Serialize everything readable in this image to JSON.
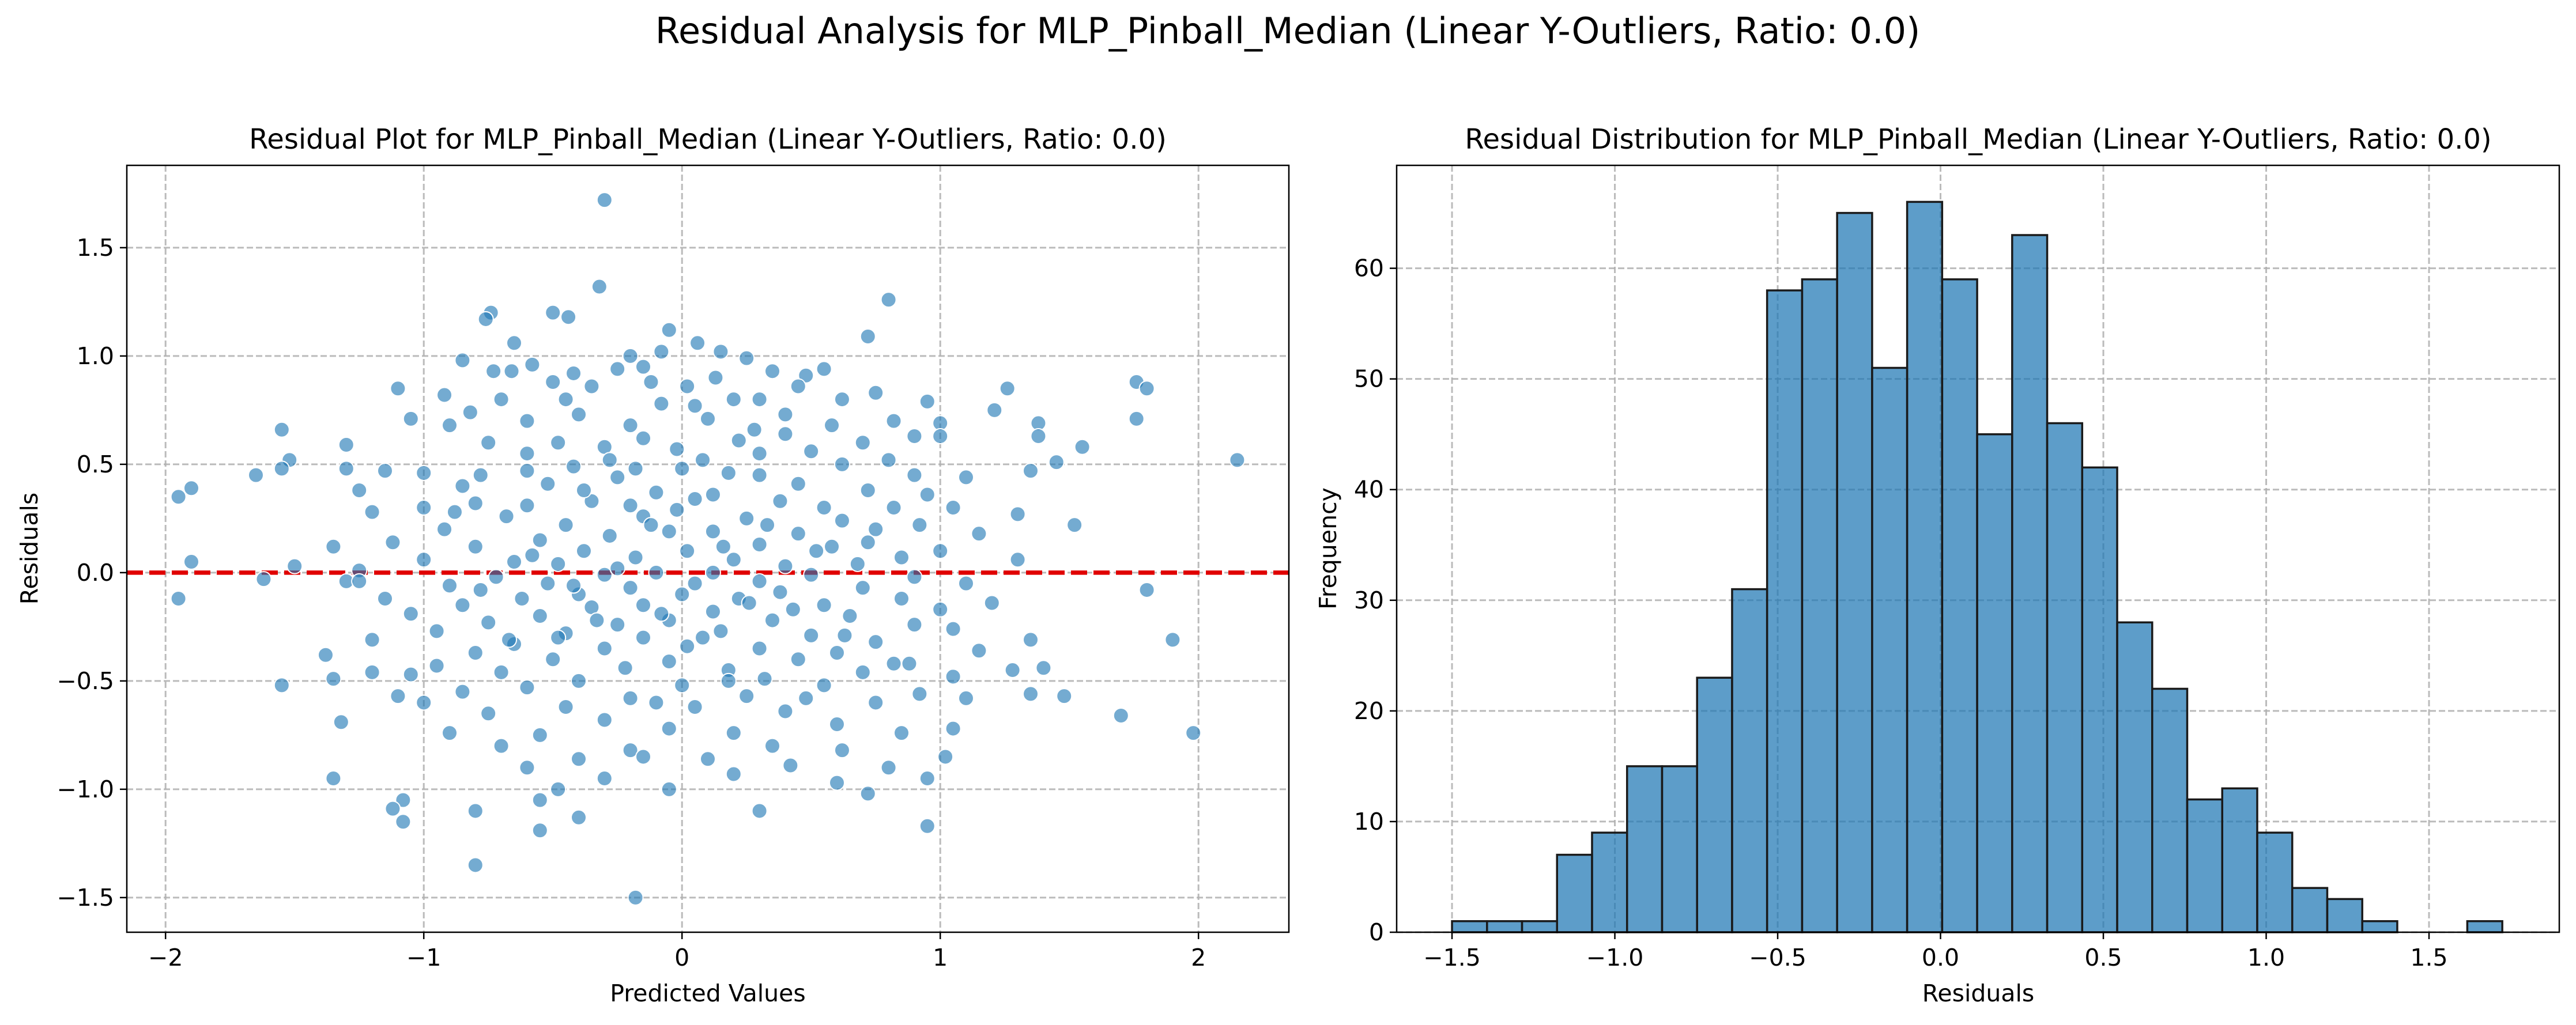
{
  "suptitle": "Residual Analysis for MLP_Pinball_Median (Linear Y-Outliers, Ratio: 0.0)",
  "chart_data": [
    {
      "type": "scatter",
      "title": "Residual Plot for MLP_Pinball_Median (Linear Y-Outliers, Ratio: 0.0)",
      "xlabel": "Predicted Values",
      "ylabel": "Residuals",
      "xlim": [
        -2.15,
        2.35
      ],
      "ylim": [
        -1.66,
        1.88
      ],
      "xticks": [
        -2,
        -1,
        0,
        1,
        2
      ],
      "xtick_labels": [
        "−2",
        "−1",
        "0",
        "1",
        "2"
      ],
      "yticks": [
        -1.5,
        -1.0,
        -0.5,
        0.0,
        0.5,
        1.0,
        1.5
      ],
      "ytick_labels": [
        "−1.5",
        "−1.0",
        "−0.5",
        "0.0",
        "0.5",
        "1.0",
        "1.5"
      ],
      "grid": true,
      "reference_line": {
        "y": 0.0,
        "color": "#e00000",
        "style": "dashed"
      },
      "point_color": "#1f77b4",
      "point_count": 700,
      "points": [
        [
          -0.3,
          1.72
        ],
        [
          -0.32,
          1.32
        ],
        [
          0.8,
          1.26
        ],
        [
          -0.74,
          1.2
        ],
        [
          -0.5,
          1.2
        ],
        [
          -0.76,
          1.17
        ],
        [
          -0.44,
          1.18
        ],
        [
          -0.05,
          1.12
        ],
        [
          -0.65,
          1.06
        ],
        [
          0.72,
          1.09
        ],
        [
          -0.08,
          1.02
        ],
        [
          0.06,
          1.06
        ],
        [
          0.15,
          1.02
        ],
        [
          -0.2,
          1.0
        ],
        [
          0.25,
          0.99
        ],
        [
          -0.85,
          0.98
        ],
        [
          -0.58,
          0.96
        ],
        [
          -0.73,
          0.93
        ],
        [
          -0.66,
          0.93
        ],
        [
          -0.15,
          0.95
        ],
        [
          0.55,
          0.94
        ],
        [
          0.35,
          0.93
        ],
        [
          -0.42,
          0.92
        ],
        [
          -0.25,
          0.94
        ],
        [
          0.48,
          0.91
        ],
        [
          -0.5,
          0.88
        ],
        [
          -1.1,
          0.85
        ],
        [
          0.13,
          0.9
        ],
        [
          -0.12,
          0.88
        ],
        [
          0.02,
          0.86
        ],
        [
          1.76,
          0.88
        ],
        [
          1.8,
          0.85
        ],
        [
          1.26,
          0.85
        ],
        [
          0.45,
          0.86
        ],
        [
          -0.35,
          0.86
        ],
        [
          0.75,
          0.83
        ],
        [
          -0.92,
          0.82
        ],
        [
          -0.7,
          0.8
        ],
        [
          0.2,
          0.8
        ],
        [
          -0.45,
          0.8
        ],
        [
          0.62,
          0.8
        ],
        [
          0.3,
          0.8
        ],
        [
          -0.08,
          0.78
        ],
        [
          0.95,
          0.79
        ],
        [
          0.05,
          0.77
        ],
        [
          -1.05,
          0.71
        ],
        [
          1.21,
          0.75
        ],
        [
          1.38,
          0.69
        ],
        [
          1.76,
          0.71
        ],
        [
          -0.82,
          0.74
        ],
        [
          -0.4,
          0.73
        ],
        [
          0.4,
          0.73
        ],
        [
          -0.6,
          0.7
        ],
        [
          0.1,
          0.71
        ],
        [
          0.58,
          0.68
        ],
        [
          0.82,
          0.7
        ],
        [
          1.0,
          0.69
        ],
        [
          -0.2,
          0.68
        ],
        [
          0.28,
          0.66
        ],
        [
          -0.9,
          0.68
        ],
        [
          -1.55,
          0.66
        ],
        [
          1.55,
          0.58
        ],
        [
          1.38,
          0.63
        ],
        [
          0.9,
          0.63
        ],
        [
          1.0,
          0.63
        ],
        [
          0.4,
          0.64
        ],
        [
          -0.15,
          0.62
        ],
        [
          -0.48,
          0.6
        ],
        [
          -0.75,
          0.6
        ],
        [
          0.22,
          0.61
        ],
        [
          0.7,
          0.6
        ],
        [
          -0.3,
          0.58
        ],
        [
          -1.3,
          0.59
        ],
        [
          -0.02,
          0.57
        ],
        [
          0.5,
          0.56
        ],
        [
          2.15,
          0.52
        ],
        [
          1.45,
          0.51
        ],
        [
          1.35,
          0.47
        ],
        [
          -1.65,
          0.45
        ],
        [
          -1.52,
          0.52
        ],
        [
          -1.55,
          0.48
        ],
        [
          -1.9,
          0.39
        ],
        [
          -1.95,
          0.35
        ],
        [
          -1.3,
          0.48
        ],
        [
          -1.15,
          0.47
        ],
        [
          -1.0,
          0.46
        ],
        [
          -0.78,
          0.45
        ],
        [
          -0.6,
          0.47
        ],
        [
          0.0,
          0.48
        ],
        [
          0.62,
          0.5
        ],
        [
          0.8,
          0.52
        ],
        [
          0.3,
          0.45
        ],
        [
          -0.25,
          0.44
        ],
        [
          0.9,
          0.45
        ],
        [
          1.1,
          0.44
        ],
        [
          -0.42,
          0.49
        ],
        [
          0.18,
          0.46
        ],
        [
          0.45,
          0.41
        ],
        [
          -0.52,
          0.41
        ],
        [
          -0.85,
          0.4
        ],
        [
          -1.25,
          0.38
        ],
        [
          0.72,
          0.38
        ],
        [
          -0.1,
          0.37
        ],
        [
          0.12,
          0.36
        ],
        [
          0.95,
          0.36
        ],
        [
          1.52,
          0.22
        ],
        [
          1.3,
          0.27
        ],
        [
          1.05,
          0.3
        ],
        [
          0.82,
          0.3
        ],
        [
          0.55,
          0.3
        ],
        [
          0.38,
          0.33
        ],
        [
          0.05,
          0.34
        ],
        [
          -0.2,
          0.31
        ],
        [
          -0.35,
          0.33
        ],
        [
          -0.6,
          0.31
        ],
        [
          -0.8,
          0.32
        ],
        [
          -1.0,
          0.3
        ],
        [
          -1.2,
          0.28
        ],
        [
          -0.68,
          0.26
        ],
        [
          -0.15,
          0.26
        ],
        [
          0.25,
          0.25
        ],
        [
          0.62,
          0.24
        ],
        [
          0.92,
          0.22
        ],
        [
          -0.45,
          0.22
        ],
        [
          -0.92,
          0.2
        ],
        [
          0.12,
          0.19
        ],
        [
          -0.05,
          0.19
        ],
        [
          0.75,
          0.2
        ],
        [
          0.45,
          0.18
        ],
        [
          -0.28,
          0.17
        ],
        [
          -0.55,
          0.15
        ],
        [
          1.15,
          0.18
        ],
        [
          -1.12,
          0.14
        ],
        [
          -1.35,
          0.12
        ],
        [
          0.3,
          0.13
        ],
        [
          -0.8,
          0.12
        ],
        [
          0.58,
          0.12
        ],
        [
          0.02,
          0.1
        ],
        [
          -0.38,
          0.1
        ],
        [
          1.0,
          0.1
        ],
        [
          0.85,
          0.07
        ],
        [
          -0.18,
          0.07
        ],
        [
          0.2,
          0.06
        ],
        [
          -0.65,
          0.05
        ],
        [
          -1.0,
          0.06
        ],
        [
          -1.9,
          0.05
        ],
        [
          1.3,
          0.06
        ],
        [
          0.68,
          0.04
        ],
        [
          -0.48,
          0.04
        ],
        [
          0.4,
          0.03
        ],
        [
          -1.5,
          0.03
        ],
        [
          -1.25,
          0.01
        ],
        [
          -0.1,
          0.0
        ],
        [
          0.12,
          0.0
        ],
        [
          -0.3,
          -0.01
        ],
        [
          0.5,
          -0.01
        ],
        [
          0.9,
          -0.02
        ],
        [
          -0.72,
          -0.02
        ],
        [
          -1.62,
          -0.03
        ],
        [
          -1.3,
          -0.04
        ],
        [
          -1.25,
          -0.04
        ],
        [
          0.3,
          -0.04
        ],
        [
          -0.52,
          -0.05
        ],
        [
          0.05,
          -0.05
        ],
        [
          1.1,
          -0.05
        ],
        [
          1.8,
          -0.08
        ],
        [
          -0.9,
          -0.06
        ],
        [
          -0.2,
          -0.07
        ],
        [
          0.7,
          -0.07
        ],
        [
          0.38,
          -0.09
        ],
        [
          -0.4,
          -0.1
        ],
        [
          0.0,
          -0.1
        ],
        [
          -1.95,
          -0.12
        ],
        [
          -1.15,
          -0.12
        ],
        [
          -0.62,
          -0.12
        ],
        [
          0.22,
          -0.12
        ],
        [
          0.85,
          -0.12
        ],
        [
          1.2,
          -0.14
        ],
        [
          -0.85,
          -0.15
        ],
        [
          -0.15,
          -0.15
        ],
        [
          0.55,
          -0.15
        ],
        [
          -0.35,
          -0.16
        ],
        [
          0.12,
          -0.18
        ],
        [
          -1.05,
          -0.19
        ],
        [
          1.0,
          -0.17
        ],
        [
          -0.55,
          -0.2
        ],
        [
          0.65,
          -0.2
        ],
        [
          -0.05,
          -0.22
        ],
        [
          0.35,
          -0.22
        ],
        [
          -0.75,
          -0.23
        ],
        [
          -0.25,
          -0.24
        ],
        [
          0.9,
          -0.24
        ],
        [
          1.05,
          -0.26
        ],
        [
          -0.95,
          -0.27
        ],
        [
          0.15,
          -0.27
        ],
        [
          -0.45,
          -0.28
        ],
        [
          0.5,
          -0.29
        ],
        [
          -0.15,
          -0.3
        ],
        [
          1.9,
          -0.31
        ],
        [
          1.35,
          -0.31
        ],
        [
          -1.2,
          -0.31
        ],
        [
          0.75,
          -0.32
        ],
        [
          -0.65,
          -0.33
        ],
        [
          0.02,
          -0.34
        ],
        [
          0.3,
          -0.35
        ],
        [
          -0.3,
          -0.35
        ],
        [
          -1.38,
          -0.38
        ],
        [
          -0.8,
          -0.37
        ],
        [
          0.6,
          -0.37
        ],
        [
          1.15,
          -0.36
        ],
        [
          -0.5,
          -0.4
        ],
        [
          0.45,
          -0.4
        ],
        [
          -0.05,
          -0.41
        ],
        [
          0.88,
          -0.42
        ],
        [
          -0.95,
          -0.43
        ],
        [
          -0.22,
          -0.44
        ],
        [
          1.4,
          -0.44
        ],
        [
          0.18,
          -0.45
        ],
        [
          -0.7,
          -0.46
        ],
        [
          0.7,
          -0.46
        ],
        [
          -1.05,
          -0.47
        ],
        [
          -1.2,
          -0.46
        ],
        [
          1.28,
          -0.45
        ],
        [
          -0.4,
          -0.5
        ],
        [
          0.32,
          -0.49
        ],
        [
          -1.35,
          -0.49
        ],
        [
          -1.55,
          -0.52
        ],
        [
          1.05,
          -0.48
        ],
        [
          0.0,
          -0.52
        ],
        [
          -0.6,
          -0.53
        ],
        [
          0.55,
          -0.52
        ],
        [
          -0.85,
          -0.55
        ],
        [
          -1.1,
          -0.57
        ],
        [
          0.92,
          -0.56
        ],
        [
          -0.2,
          -0.58
        ],
        [
          0.25,
          -0.57
        ],
        [
          -1.0,
          -0.6
        ],
        [
          -0.45,
          -0.62
        ],
        [
          0.05,
          -0.62
        ],
        [
          0.75,
          -0.6
        ],
        [
          1.1,
          -0.58
        ],
        [
          -0.75,
          -0.65
        ],
        [
          0.4,
          -0.64
        ],
        [
          1.35,
          -0.56
        ],
        [
          1.48,
          -0.57
        ],
        [
          1.7,
          -0.66
        ],
        [
          -1.32,
          -0.69
        ],
        [
          -0.3,
          -0.68
        ],
        [
          0.6,
          -0.7
        ],
        [
          -0.05,
          -0.72
        ],
        [
          0.2,
          -0.74
        ],
        [
          -0.9,
          -0.74
        ],
        [
          -0.55,
          -0.75
        ],
        [
          0.85,
          -0.74
        ],
        [
          1.05,
          -0.72
        ],
        [
          1.98,
          -0.74
        ],
        [
          -0.7,
          -0.8
        ],
        [
          0.35,
          -0.8
        ],
        [
          -0.2,
          -0.82
        ],
        [
          0.62,
          -0.82
        ],
        [
          -0.4,
          -0.86
        ],
        [
          0.1,
          -0.86
        ],
        [
          1.02,
          -0.85
        ],
        [
          -0.15,
          -0.85
        ],
        [
          0.42,
          -0.89
        ],
        [
          -0.6,
          -0.9
        ],
        [
          0.8,
          -0.9
        ],
        [
          -1.35,
          -0.95
        ],
        [
          -0.3,
          -0.95
        ],
        [
          0.2,
          -0.93
        ],
        [
          0.6,
          -0.97
        ],
        [
          0.95,
          -0.95
        ],
        [
          -0.48,
          -1.0
        ],
        [
          -0.05,
          -1.0
        ],
        [
          0.72,
          -1.02
        ],
        [
          -0.55,
          -1.05
        ],
        [
          -1.08,
          -1.05
        ],
        [
          -1.12,
          -1.09
        ],
        [
          -0.8,
          -1.1
        ],
        [
          0.3,
          -1.1
        ],
        [
          -0.4,
          -1.13
        ],
        [
          -1.08,
          -1.15
        ],
        [
          -0.55,
          -1.19
        ],
        [
          0.95,
          -1.17
        ],
        [
          -0.8,
          -1.35
        ],
        [
          -0.18,
          -1.5
        ],
        [
          -0.08,
          -0.19
        ],
        [
          -0.25,
          0.02
        ],
        [
          -0.33,
          -0.22
        ],
        [
          -0.12,
          0.22
        ],
        [
          0.08,
          -0.3
        ],
        [
          0.16,
          0.12
        ],
        [
          -0.42,
          -0.06
        ],
        [
          -0.02,
          0.29
        ],
        [
          0.26,
          -0.14
        ],
        [
          -0.58,
          0.08
        ],
        [
          0.33,
          0.22
        ],
        [
          -0.67,
          -0.31
        ],
        [
          0.43,
          -0.17
        ],
        [
          -0.38,
          0.38
        ],
        [
          0.52,
          0.1
        ],
        [
          -0.78,
          -0.08
        ],
        [
          0.63,
          -0.29
        ],
        [
          -0.28,
          0.52
        ],
        [
          0.72,
          0.14
        ],
        [
          -0.88,
          0.28
        ],
        [
          0.82,
          -0.42
        ],
        [
          -0.1,
          -0.6
        ],
        [
          0.08,
          0.52
        ],
        [
          -0.48,
          -0.3
        ],
        [
          0.3,
          0.55
        ],
        [
          -0.6,
          0.55
        ],
        [
          0.48,
          -0.58
        ],
        [
          -0.18,
          0.48
        ],
        [
          0.18,
          -0.5
        ]
      ]
    },
    {
      "type": "bar",
      "subtype": "histogram",
      "title": "Residual Distribution for MLP_Pinball_Median (Linear Y-Outliers, Ratio: 0.0)",
      "xlabel": "Residuals",
      "ylabel": "Frequency",
      "xlim": [
        -1.67,
        1.9
      ],
      "ylim": [
        0,
        69.3
      ],
      "xticks": [
        -1.5,
        -1.0,
        -0.5,
        0.0,
        0.5,
        1.0,
        1.5
      ],
      "xtick_labels": [
        "−1.5",
        "−1.0",
        "−0.5",
        "0.0",
        "0.5",
        "1.0",
        "1.5"
      ],
      "yticks": [
        0,
        10,
        20,
        30,
        40,
        50,
        60
      ],
      "ytick_labels": [
        "0",
        "10",
        "20",
        "30",
        "40",
        "50",
        "60"
      ],
      "grid": true,
      "bar_color": "#1f77b4",
      "bin_start": -1.5,
      "bin_width": 0.1075,
      "values": [
        1,
        1,
        1,
        7,
        9,
        15,
        15,
        23,
        31,
        58,
        59,
        65,
        51,
        66,
        59,
        45,
        63,
        46,
        42,
        28,
        22,
        12,
        13,
        9,
        4,
        3,
        1,
        0,
        0,
        1
      ]
    }
  ]
}
